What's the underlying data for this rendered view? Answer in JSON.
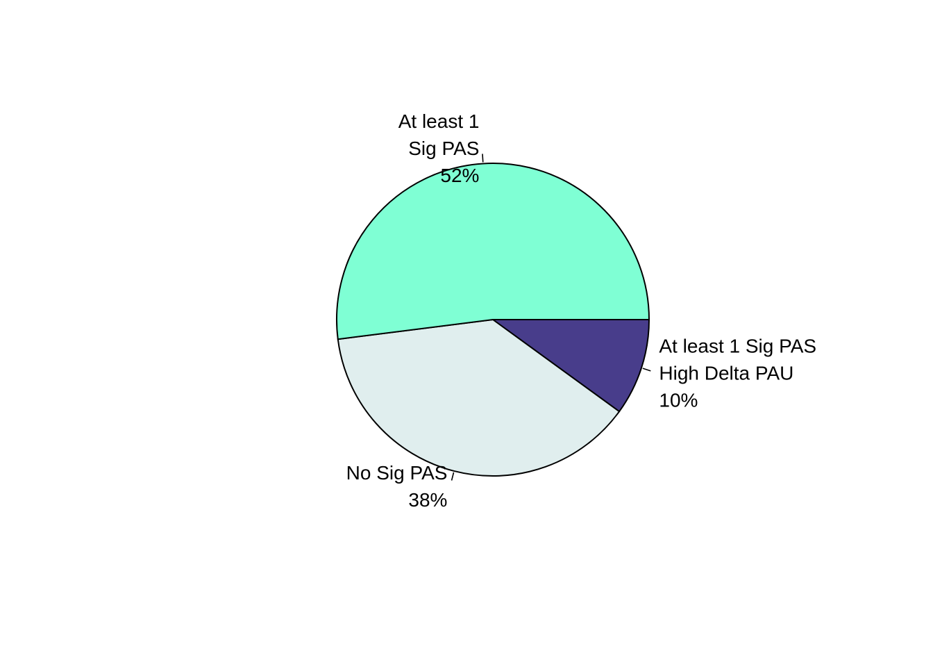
{
  "chart_data": {
    "type": "pie",
    "slices": [
      {
        "label_lines": [
          "At least 1 Sig PAS",
          "High Delta PAU",
          "10%"
        ],
        "value": 10,
        "color": "#483D8B"
      },
      {
        "label_lines": [
          "No Sig PAS",
          "38%"
        ],
        "value": 38,
        "color": "#E0EEEE"
      },
      {
        "label_lines": [
          "At least 1",
          "Sig PAS",
          "52%"
        ],
        "value": 52,
        "color": "#7FFFD4"
      }
    ],
    "direction": "clockwise",
    "start_angle_deg": 0,
    "title": "",
    "legend": "none"
  }
}
